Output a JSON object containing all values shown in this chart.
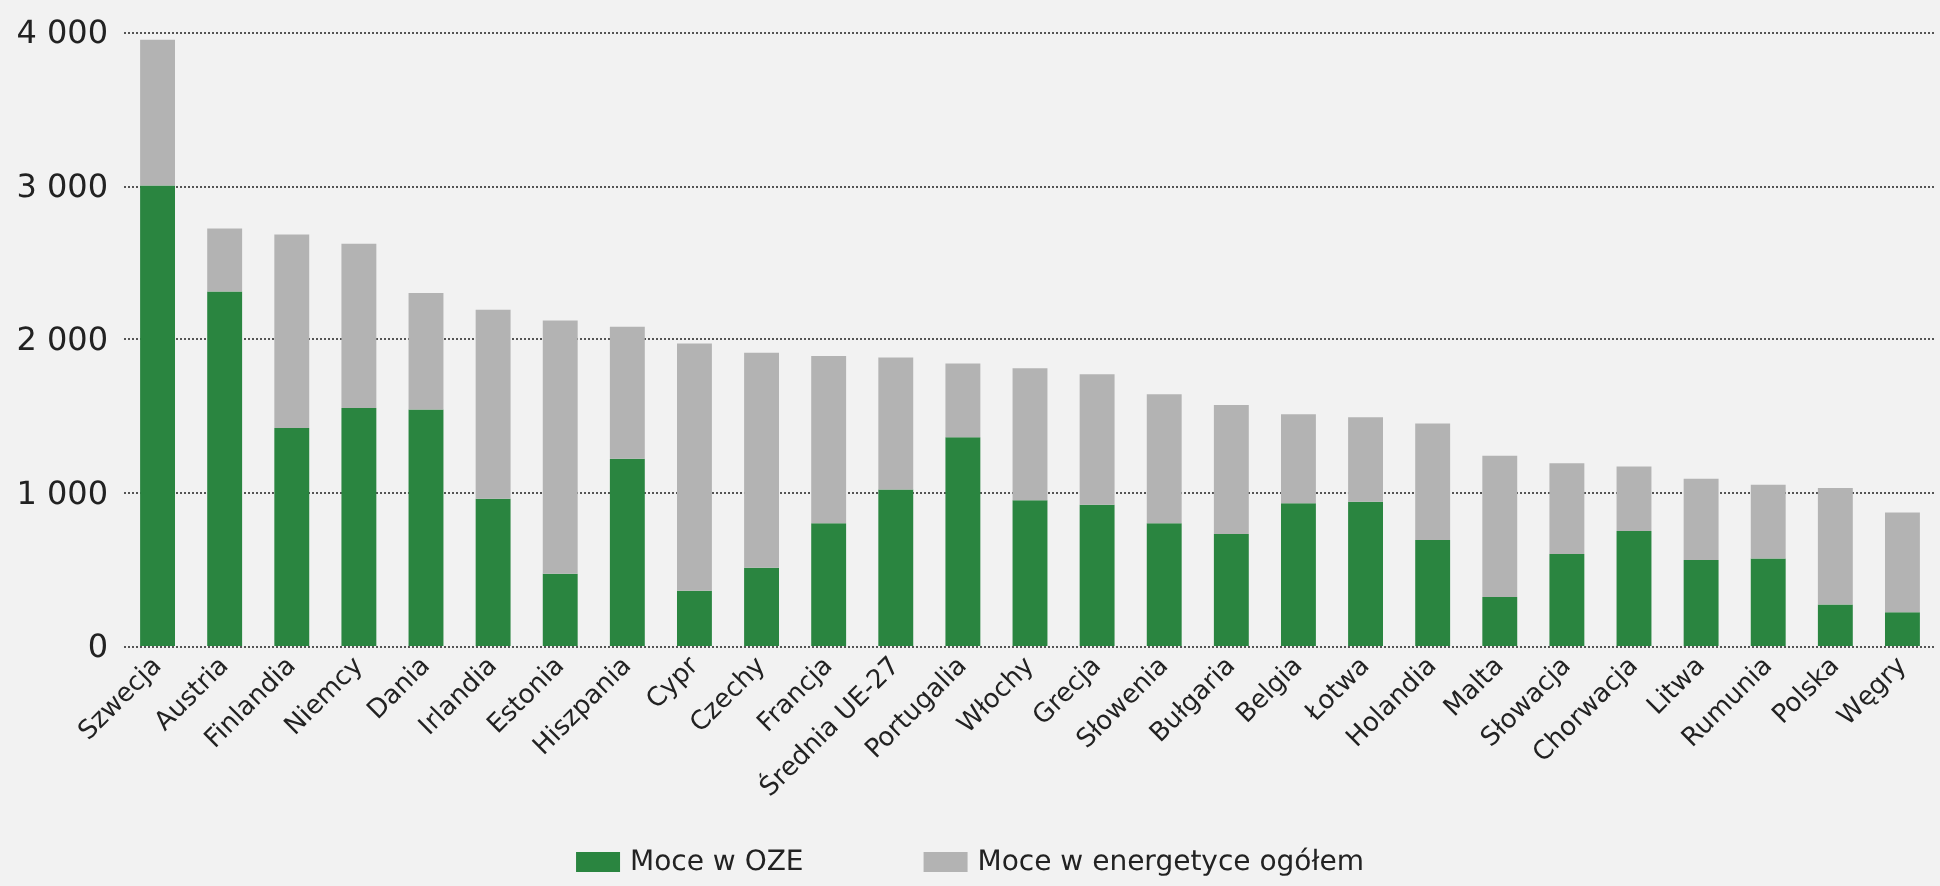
{
  "chart_data": {
    "type": "bar",
    "stacked": true,
    "categories": [
      "Szwecja",
      "Austria",
      "Finlandia",
      "Niemcy",
      "Dania",
      "Irlandia",
      "Estonia",
      "Hiszpania",
      "Cypr",
      "Czechy",
      "Francja",
      "Średnia UE-27",
      "Portugalia",
      "Włochy",
      "Grecja",
      "Słowenia",
      "Bułgaria",
      "Belgia",
      "Łotwa",
      "Holandia",
      "Malta",
      "Słowacja",
      "Chorwacja",
      "Litwa",
      "Rumunia",
      "Polska",
      "Węgry"
    ],
    "series": [
      {
        "name": "Moce w OZE",
        "color": "#2a8540",
        "values": [
          3000,
          2310,
          1420,
          1550,
          1540,
          960,
          470,
          1220,
          360,
          510,
          800,
          1020,
          1360,
          950,
          920,
          800,
          730,
          930,
          940,
          690,
          320,
          600,
          750,
          560,
          570,
          270,
          220
        ]
      },
      {
        "name": "Moce w energetyce ogółem",
        "color": "#b3b3b3",
        "values": [
          950,
          410,
          1260,
          1070,
          760,
          1230,
          1650,
          860,
          1610,
          1400,
          1090,
          860,
          480,
          860,
          850,
          840,
          840,
          580,
          550,
          760,
          920,
          590,
          420,
          530,
          480,
          760,
          650
        ]
      }
    ],
    "ylim": [
      0,
      4000
    ],
    "yticks": [
      {
        "value": 0,
        "label": "0"
      },
      {
        "value": 1000,
        "label": "1 000"
      },
      {
        "value": 2000,
        "label": "2 000"
      },
      {
        "value": 3000,
        "label": "3 000"
      },
      {
        "value": 4000,
        "label": "4 000"
      }
    ],
    "grid": "y",
    "legend": "bottom"
  }
}
